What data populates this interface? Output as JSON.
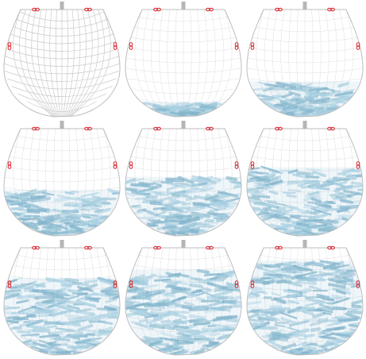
{
  "figure": {
    "panel_count": 9,
    "layout": "3x3 grid",
    "colors": {
      "bag_outline": "#bdbdbd",
      "mesh_line": "#c8c8c8",
      "particle": "#9cc9dd",
      "particle_edge": "#6fa9c4",
      "clip_ring": "#e0202a",
      "hook": "#b5b5b5"
    },
    "panels": [
      {
        "id": "panel-1",
        "fill_fraction": 0.0,
        "mesh_style": "dense-deformed"
      },
      {
        "id": "panel-2",
        "fill_fraction": 0.14,
        "mesh_style": "sparse"
      },
      {
        "id": "panel-3",
        "fill_fraction": 0.33,
        "mesh_style": "sparse"
      },
      {
        "id": "panel-4",
        "fill_fraction": 0.43,
        "mesh_style": "sparse"
      },
      {
        "id": "panel-5",
        "fill_fraction": 0.55,
        "mesh_style": "sparse"
      },
      {
        "id": "panel-6",
        "fill_fraction": 0.64,
        "mesh_style": "sparse"
      },
      {
        "id": "panel-7",
        "fill_fraction": 0.72,
        "mesh_style": "sparse"
      },
      {
        "id": "panel-8",
        "fill_fraction": 0.8,
        "mesh_style": "sparse"
      },
      {
        "id": "panel-9",
        "fill_fraction": 0.88,
        "mesh_style": "sparse"
      }
    ]
  }
}
